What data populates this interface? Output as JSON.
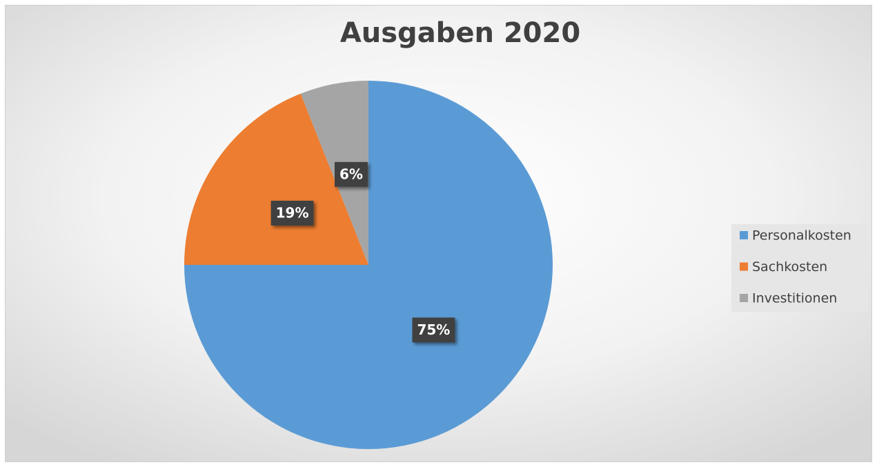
{
  "chart_data": {
    "type": "pie",
    "title": "Ausgaben 2020",
    "categories": [
      "Personalkosten",
      "Sachkosten",
      "Investitionen"
    ],
    "values": [
      75,
      19,
      6
    ],
    "value_labels": [
      "75%",
      "19%",
      "6%"
    ],
    "colors": [
      "#5b9bd5",
      "#ed7d31",
      "#a5a5a5"
    ],
    "legend": "right"
  }
}
